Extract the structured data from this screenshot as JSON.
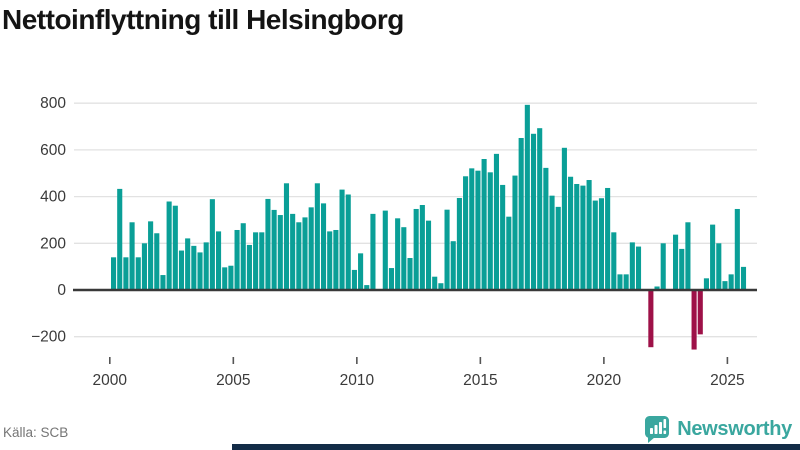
{
  "header": {
    "title": "Nettoinflyttning till Helsingborg"
  },
  "footer": {
    "source": "Källa: SCB",
    "brand": "Newsworthy"
  },
  "colors": {
    "bar_positive": "#0a9f97",
    "bar_negative": "#9e1148",
    "logo_teal": "#3aa79f",
    "bottom_strip_navy": "#132c47",
    "grid": "#e2e2e2",
    "zero_line": "#383838",
    "axis_text": "#3a3a3a"
  },
  "chart_data": {
    "type": "bar",
    "title": "Nettoinflyttning till Helsingborg",
    "source": "SCB",
    "frequency": "quarterly",
    "start_period": "2000-Q1",
    "end_period": "2025-Q3",
    "values": [
      140,
      433,
      140,
      290,
      140,
      200,
      294,
      243,
      64,
      379,
      361,
      169,
      221,
      189,
      161,
      204,
      389,
      251,
      97,
      104,
      257,
      286,
      193,
      247,
      247,
      390,
      343,
      321,
      457,
      326,
      290,
      311,
      354,
      457,
      371,
      251,
      257,
      430,
      409,
      86,
      157,
      21,
      326,
      0,
      340,
      94,
      307,
      269,
      137,
      347,
      364,
      297,
      57,
      29,
      344,
      209,
      394,
      487,
      521,
      511,
      561,
      504,
      583,
      450,
      314,
      490,
      651,
      793,
      669,
      693,
      523,
      404,
      356,
      609,
      485,
      454,
      447,
      471,
      383,
      393,
      437,
      247,
      67,
      67,
      204,
      186,
      0,
      -245,
      15,
      200,
      0,
      237,
      176,
      290,
      -255,
      -190,
      50,
      280,
      200,
      38,
      67,
      347,
      99
    ],
    "y_ticks": [
      {
        "label": "800",
        "value": 800
      },
      {
        "label": "600",
        "value": 600
      },
      {
        "label": "400",
        "value": 400
      },
      {
        "label": "200",
        "value": 200
      },
      {
        "label": "0",
        "value": 0
      },
      {
        "label": "−200",
        "value": -200
      }
    ],
    "x_ticks": [
      {
        "label": "2000",
        "index": 0
      },
      {
        "label": "2005",
        "index": 20
      },
      {
        "label": "2010",
        "index": 40
      },
      {
        "label": "2015",
        "index": 60
      },
      {
        "label": "2020",
        "index": 80
      },
      {
        "label": "2025",
        "index": 100
      }
    ],
    "ylim": [
      -260,
      820
    ],
    "grid": true,
    "legend": "none"
  }
}
